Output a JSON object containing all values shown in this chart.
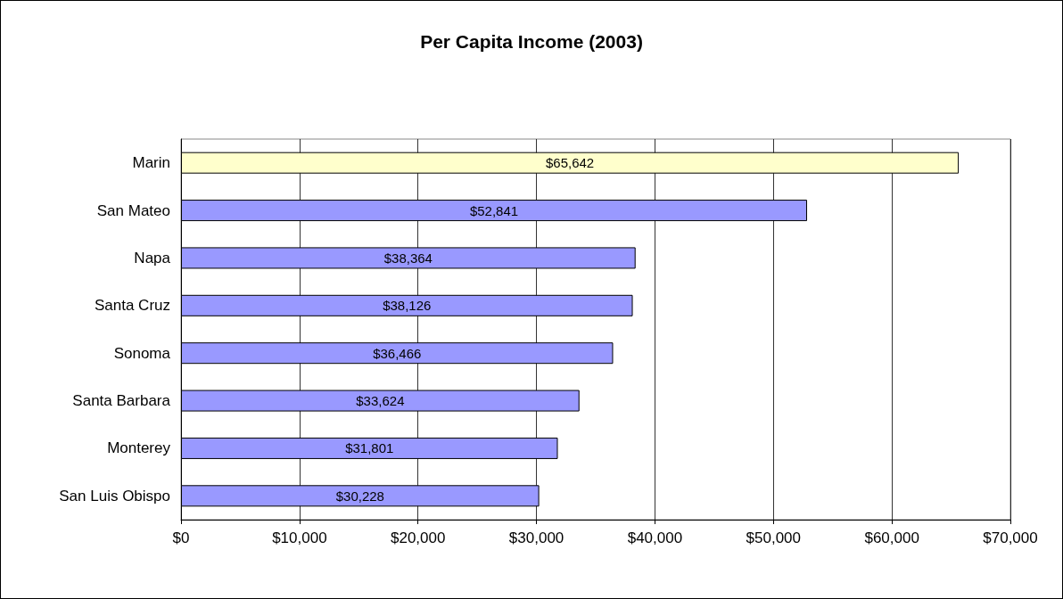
{
  "chart_data": {
    "type": "bar",
    "orientation": "horizontal",
    "title": "Per Capita Income (2003)",
    "categories": [
      "Marin",
      "San Mateo",
      "Napa",
      "Santa Cruz",
      "Sonoma",
      "Santa Barbara",
      "Monterey",
      "San Luis Obispo"
    ],
    "values": [
      65642,
      52841,
      38364,
      38126,
      36466,
      33624,
      31801,
      30228
    ],
    "colors": [
      "#ffffcc",
      "#9999ff",
      "#9999ff",
      "#9999ff",
      "#9999ff",
      "#9999ff",
      "#9999ff",
      "#9999ff"
    ],
    "value_labels": [
      "$65,642",
      "$52,841",
      "$38,364",
      "$38,126",
      "$36,466",
      "$33,624",
      "$31,801",
      "$30,228"
    ],
    "xlim": [
      0,
      70000
    ],
    "xticks": [
      {
        "value": 0,
        "label": "$0"
      },
      {
        "value": 10000,
        "label": "$10,000"
      },
      {
        "value": 20000,
        "label": "$20,000"
      },
      {
        "value": 30000,
        "label": "$30,000"
      },
      {
        "value": 40000,
        "label": "$40,000"
      },
      {
        "value": 50000,
        "label": "$50,000"
      },
      {
        "value": 60000,
        "label": "$60,000"
      },
      {
        "value": 70000,
        "label": "$70,000"
      }
    ],
    "grid": "x"
  }
}
